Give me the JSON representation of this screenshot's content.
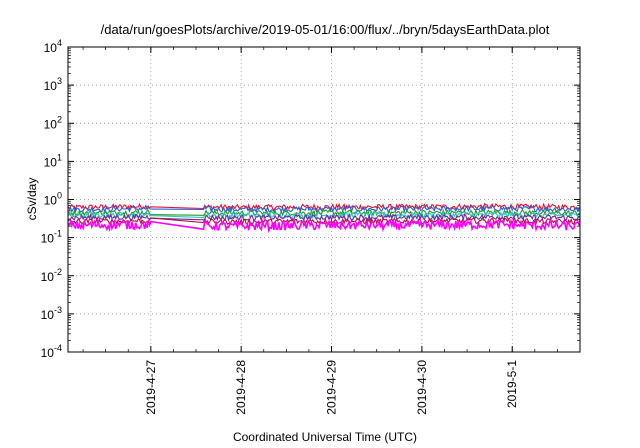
{
  "chart_data": {
    "type": "line",
    "title": "/data/run/goesPlots/archive/2019-05-01/16:00/flux/../bryn/5daysEarthData.plot",
    "xlabel": "Coordinated Universal Time (UTC)",
    "ylabel": "cSv/day",
    "x_range": [
      "2019-04-26 02:00",
      "2019-05-01 18:00"
    ],
    "x_ticks": [
      "2019-4-27",
      "2019-4-28",
      "2019-4-29",
      "2019-4-30",
      "2019-5-1"
    ],
    "y_scale": "log",
    "ylim": [
      0.0001,
      10000
    ],
    "y_ticks": [
      {
        "base": "10",
        "exp": "-4"
      },
      {
        "base": "10",
        "exp": "-3"
      },
      {
        "base": "10",
        "exp": "-2"
      },
      {
        "base": "10",
        "exp": "-1"
      },
      {
        "base": "10",
        "exp": "0"
      },
      {
        "base": "10",
        "exp": "1"
      },
      {
        "base": "10",
        "exp": "2"
      },
      {
        "base": "10",
        "exp": "3"
      },
      {
        "base": "10",
        "exp": "4"
      }
    ],
    "grid": true,
    "legend": "none",
    "data_gaps": [
      [
        "2019-04-27 00:00",
        "2019-04-27 14:00"
      ]
    ],
    "series": [
      {
        "color": "#e8122f",
        "values": [
          0.62,
          0.66,
          0.62,
          0.64,
          0.64,
          0.66,
          0.63
        ]
      },
      {
        "color": "#2a5ed8",
        "values": [
          0.55,
          0.58,
          0.55,
          0.56,
          0.56,
          0.58,
          0.55
        ]
      },
      {
        "color": "#1f9a2a",
        "values": [
          0.44,
          0.46,
          0.44,
          0.45,
          0.45,
          0.46,
          0.44
        ]
      },
      {
        "color": "#2ec4c4",
        "values": [
          0.38,
          0.4,
          0.38,
          0.39,
          0.39,
          0.4,
          0.38
        ]
      },
      {
        "color": "#6a2a9a",
        "values": [
          0.33,
          0.35,
          0.33,
          0.34,
          0.34,
          0.35,
          0.33
        ]
      },
      {
        "color": "#b01040",
        "values": [
          0.26,
          0.28,
          0.26,
          0.27,
          0.27,
          0.28,
          0.26
        ]
      },
      {
        "color": "#ff00ff",
        "values": [
          0.21,
          0.22,
          0.2,
          0.21,
          0.21,
          0.22,
          0.2
        ]
      }
    ]
  }
}
